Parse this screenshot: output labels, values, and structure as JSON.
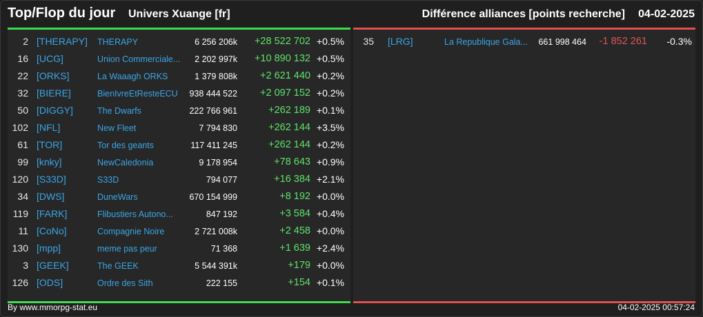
{
  "header": {
    "title": "Top/Flop du jour",
    "universe": "Univers Xuange [fr]",
    "subtitle": "Différence alliances [points recherche]",
    "date": "04-02-2025"
  },
  "top": [
    {
      "rank": "2",
      "tag": "[THERAPY]",
      "name": "THERAPY",
      "points": "6 256 206k",
      "diff": "+28 522 702",
      "pct": "+0.5%"
    },
    {
      "rank": "16",
      "tag": "[UCG]",
      "name": "Union Commerciale...",
      "points": "2 202 997k",
      "diff": "+10 890 132",
      "pct": "+0.5%"
    },
    {
      "rank": "22",
      "tag": "[ORKS]",
      "name": "La Waaagh ORKS",
      "points": "1 379 808k",
      "diff": "+2 621 440",
      "pct": "+0.2%"
    },
    {
      "rank": "32",
      "tag": "[BIERE]",
      "name": "BienIvreEtResteECU",
      "points": "938 444 522",
      "diff": "+2 097 152",
      "pct": "+0.2%"
    },
    {
      "rank": "50",
      "tag": "[DIGGY]",
      "name": "The Dwarfs",
      "points": "222 766 961",
      "diff": "+262 189",
      "pct": "+0.1%"
    },
    {
      "rank": "102",
      "tag": "[NFL]",
      "name": "New Fleet",
      "points": "7 794 830",
      "diff": "+262 144",
      "pct": "+3.5%"
    },
    {
      "rank": "61",
      "tag": "[TOR]",
      "name": "Tor des geants",
      "points": "117 411 245",
      "diff": "+262 144",
      "pct": "+0.2%"
    },
    {
      "rank": "99",
      "tag": "[knky]",
      "name": "NewCaledonia",
      "points": "9 178 954",
      "diff": "+78 643",
      "pct": "+0.9%"
    },
    {
      "rank": "120",
      "tag": "[S33D]",
      "name": "S33D",
      "points": "794 077",
      "diff": "+16 384",
      "pct": "+2.1%"
    },
    {
      "rank": "34",
      "tag": "[DWS]",
      "name": "DuneWars",
      "points": "670 154 999",
      "diff": "+8 192",
      "pct": "+0.0%"
    },
    {
      "rank": "119",
      "tag": "[FARK]",
      "name": "Flibustiers Autono...",
      "points": "847 192",
      "diff": "+3 584",
      "pct": "+0.4%"
    },
    {
      "rank": "11",
      "tag": "[CoNo]",
      "name": "Compagnie Noire",
      "points": "2 721 008k",
      "diff": "+2 458",
      "pct": "+0.0%"
    },
    {
      "rank": "130",
      "tag": "[mpp]",
      "name": "meme pas peur",
      "points": "71 368",
      "diff": "+1 639",
      "pct": "+2.4%"
    },
    {
      "rank": "3",
      "tag": "[GEEK]",
      "name": "The GEEK",
      "points": "5 544 391k",
      "diff": "+179",
      "pct": "+0.0%"
    },
    {
      "rank": "126",
      "tag": "[ODS]",
      "name": "Ordre des Sith",
      "points": "222 155",
      "diff": "+154",
      "pct": "+0.1%"
    }
  ],
  "flop": [
    {
      "rank": "35",
      "tag": "[LRG]",
      "name": "La Republique Gala...",
      "points": "661 998 464",
      "diff": "-1 852 261",
      "pct": "-0.3%"
    }
  ],
  "footer": {
    "source": "By www.mmorpg-stat.eu",
    "timestamp": "04-02-2025 00:57:24"
  },
  "colors": {
    "positive": "#5fe36a",
    "negative": "#e05555",
    "link": "#3aa6e6",
    "top_bar": "#3ddc4f",
    "flop_bar": "#e05050"
  }
}
